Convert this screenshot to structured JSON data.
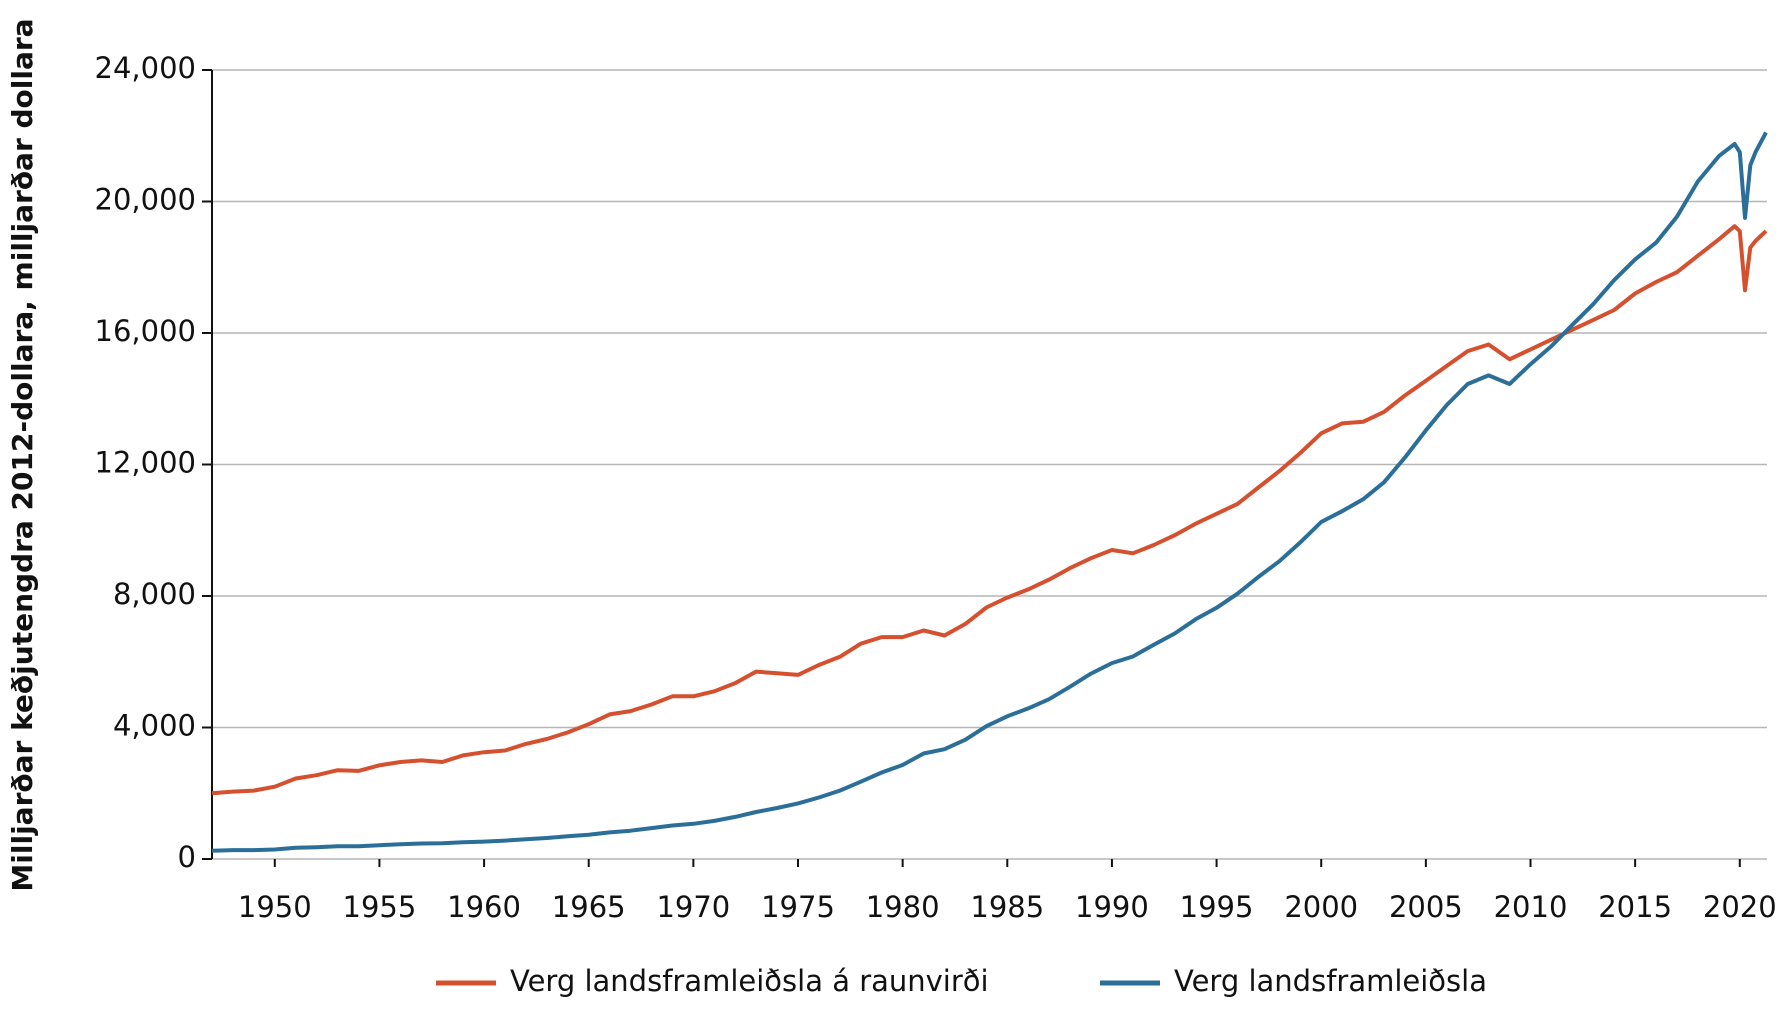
{
  "chart_data": {
    "type": "line",
    "y_label": "Milljarðar keðjutengdra 2012-dollara, milljarðar dollara",
    "x": [
      1947,
      1948,
      1949,
      1950,
      1951,
      1952,
      1953,
      1954,
      1955,
      1956,
      1957,
      1958,
      1959,
      1960,
      1961,
      1962,
      1963,
      1964,
      1965,
      1966,
      1967,
      1968,
      1969,
      1970,
      1971,
      1972,
      1973,
      1974,
      1975,
      1976,
      1977,
      1978,
      1979,
      1980,
      1981,
      1982,
      1983,
      1984,
      1985,
      1986,
      1987,
      1988,
      1989,
      1990,
      1991,
      1992,
      1993,
      1994,
      1995,
      1996,
      1997,
      1998,
      1999,
      2000,
      2001,
      2002,
      2003,
      2004,
      2005,
      2006,
      2007,
      2008,
      2009,
      2010,
      2011,
      2012,
      2013,
      2014,
      2015,
      2016,
      2017,
      2018,
      2019,
      2019.75,
      2020,
      2020.25,
      2020.5,
      2020.75,
      2021.25
    ],
    "series": [
      {
        "name": "Verg landsframleiðsla á raunvirði",
        "color": "#d4502f",
        "values": [
          2000,
          2050,
          2080,
          2200,
          2450,
          2550,
          2700,
          2680,
          2850,
          2950,
          3000,
          2950,
          3150,
          3250,
          3300,
          3500,
          3650,
          3850,
          4100,
          4400,
          4500,
          4700,
          4950,
          4950,
          5100,
          5350,
          5700,
          5650,
          5600,
          5900,
          6150,
          6550,
          6750,
          6750,
          6950,
          6800,
          7150,
          7650,
          7950,
          8200,
          8500,
          8850,
          9150,
          9400,
          9300,
          9550,
          9850,
          10200,
          10500,
          10800,
          11300,
          11800,
          12350,
          12950,
          13250,
          13300,
          13600,
          14100,
          14550,
          15000,
          15450,
          15650,
          15200,
          15500,
          15800,
          16100,
          16400,
          16700,
          17200,
          17550,
          17850,
          18350,
          18850,
          19250,
          19100,
          17300,
          18600,
          18800,
          19100
        ]
      },
      {
        "name": "Verg landsframleiðsla",
        "color": "#2b6f99",
        "values": [
          250,
          270,
          270,
          290,
          340,
          360,
          390,
          390,
          420,
          450,
          470,
          480,
          510,
          530,
          560,
          600,
          640,
          690,
          740,
          810,
          860,
          940,
          1020,
          1070,
          1160,
          1280,
          1430,
          1550,
          1690,
          1870,
          2080,
          2350,
          2630,
          2860,
          3210,
          3340,
          3630,
          4040,
          4340,
          4580,
          4860,
          5240,
          5640,
          5960,
          6160,
          6520,
          6860,
          7290,
          7640,
          8070,
          8580,
          9060,
          9630,
          10250,
          10580,
          10940,
          11460,
          12210,
          13040,
          13810,
          14450,
          14710,
          14450,
          15050,
          15600,
          16250,
          16880,
          17610,
          18240,
          18750,
          19540,
          20610,
          21380,
          21750,
          21500,
          19500,
          21100,
          21500,
          22100
        ]
      }
    ],
    "xlim": [
      1947,
      2021.3
    ],
    "xticks": [
      1950,
      1955,
      1960,
      1965,
      1970,
      1975,
      1980,
      1985,
      1990,
      1995,
      2000,
      2005,
      2010,
      2015,
      2020
    ],
    "ylim": [
      0,
      24000
    ],
    "yticks": [
      0,
      {
        "value": 4000,
        "label": "4,000"
      },
      {
        "value": 8000,
        "label": "8,000"
      },
      {
        "value": 12000,
        "label": "12,000"
      },
      {
        "value": 16000,
        "label": "16,000"
      },
      {
        "value": 20000,
        "label": "20,000"
      },
      {
        "value": 24000,
        "label": "24,000"
      }
    ],
    "grid": true,
    "legend": "bottom"
  }
}
